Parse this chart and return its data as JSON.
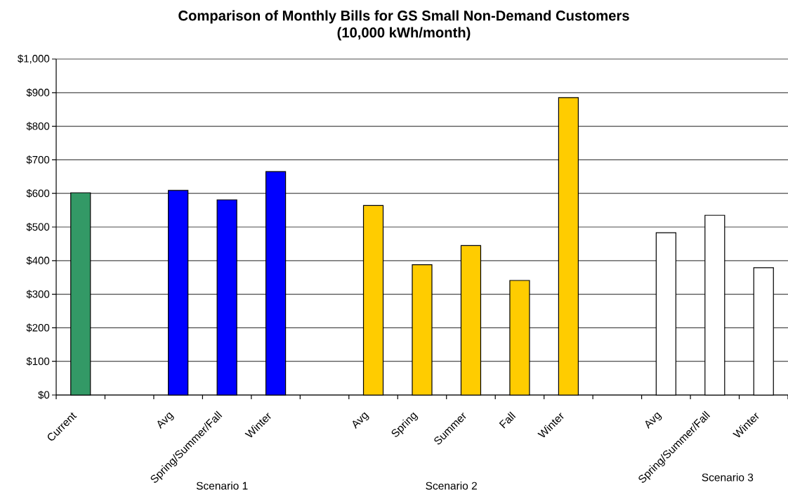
{
  "chart_data": {
    "type": "bar",
    "title": "Comparison of Monthly Bills for GS Small Non-Demand Customers",
    "subtitle": "(10,000 kWh/month)",
    "categories": [
      "Current",
      null,
      "Avg",
      "Spring/Summer/Fall",
      "Winter",
      null,
      "Avg",
      "Spring",
      "Summer",
      "Fall",
      "Winter",
      null,
      "Avg",
      "Spring/Summer/Fall",
      "Winter"
    ],
    "values": [
      602,
      null,
      609,
      581,
      665,
      null,
      564,
      388,
      445,
      341,
      885,
      null,
      483,
      535,
      379
    ],
    "colors": [
      "#339966",
      null,
      "#0000ff",
      "#0000ff",
      "#0000ff",
      null,
      "#ffcc00",
      "#ffcc00",
      "#ffcc00",
      "#ffcc00",
      "#ffcc00",
      null,
      "#ffffff",
      "#ffffff",
      "#ffffff"
    ],
    "ylim": [
      0,
      1000
    ],
    "yticks": [
      {
        "value": 0,
        "label": "$0"
      },
      {
        "value": 100,
        "label": "$100"
      },
      {
        "value": 200,
        "label": "$200"
      },
      {
        "value": 300,
        "label": "$300"
      },
      {
        "value": 400,
        "label": "$400"
      },
      {
        "value": 500,
        "label": "$500"
      },
      {
        "value": 600,
        "label": "$600"
      },
      {
        "value": 700,
        "label": "$700"
      },
      {
        "value": 800,
        "label": "$800"
      },
      {
        "value": 900,
        "label": "$900"
      },
      {
        "value": 1000,
        "label": "$1,000"
      }
    ],
    "grid": "y",
    "annotations": [
      "Scenario 1",
      "Scenario 2",
      "Scenario 3"
    ]
  }
}
